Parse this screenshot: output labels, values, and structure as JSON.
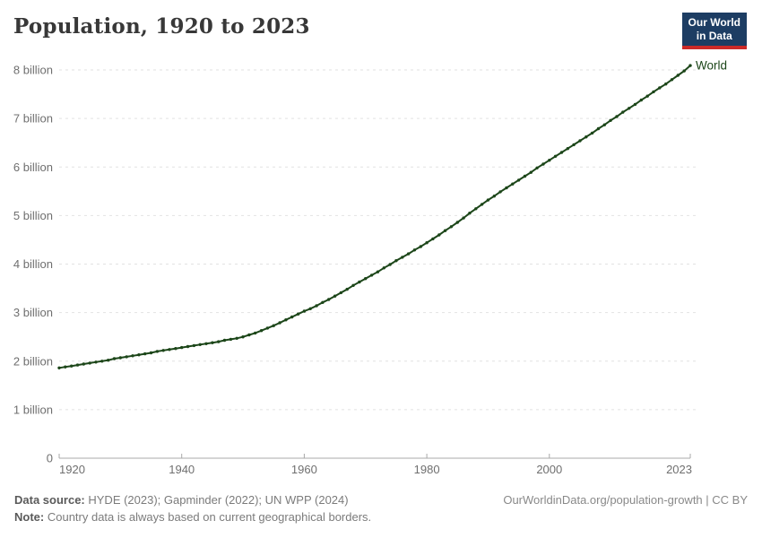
{
  "header": {
    "title": "Population, 1920 to 2023"
  },
  "logo": {
    "line1": "Our World",
    "line2": "in Data",
    "bg_color": "#1d3d63",
    "underline_color": "#cc2a28"
  },
  "footer": {
    "datasource_label": "Data source:",
    "datasource_value": "HYDE (2023); Gapminder (2022); UN WPP (2024)",
    "note_label": "Note:",
    "note_value": "Country data is always based on current geographical borders.",
    "rights": "OurWorldinData.org/population-growth | CC BY"
  },
  "chart_data": {
    "type": "line",
    "title": "Population, 1920 to 2023",
    "xlabel": "",
    "ylabel": "",
    "x_range": [
      1920,
      2023
    ],
    "x_step": 1,
    "ylim": [
      0,
      8.2
    ],
    "grid": "horizontal dashed",
    "legend": "end-of-line entity label",
    "line_color": "#1c4619",
    "gridline_color": "#e2e2e2",
    "axis_color": "#a8a8a8",
    "tick_text_color": "#6f6f6f",
    "yticks": [
      {
        "value": 0,
        "label": "0"
      },
      {
        "value": 1,
        "label": "1 billion"
      },
      {
        "value": 2,
        "label": "2 billion"
      },
      {
        "value": 3,
        "label": "3 billion"
      },
      {
        "value": 4,
        "label": "4 billion"
      },
      {
        "value": 5,
        "label": "5 billion"
      },
      {
        "value": 6,
        "label": "6 billion"
      },
      {
        "value": 7,
        "label": "7 billion"
      },
      {
        "value": 8,
        "label": "8 billion"
      }
    ],
    "xticks": [
      {
        "value": 1920,
        "label": "1920"
      },
      {
        "value": 1940,
        "label": "1940"
      },
      {
        "value": 1960,
        "label": "1960"
      },
      {
        "value": 1980,
        "label": "1980"
      },
      {
        "value": 2000,
        "label": "2000"
      },
      {
        "value": 2023,
        "label": "2023"
      }
    ],
    "series": [
      {
        "name": "World",
        "color": "#1c4619",
        "values": [
          1.86,
          1.88,
          1.9,
          1.92,
          1.94,
          1.96,
          1.98,
          2.0,
          2.02,
          2.05,
          2.07,
          2.09,
          2.11,
          2.13,
          2.15,
          2.17,
          2.2,
          2.22,
          2.24,
          2.26,
          2.28,
          2.3,
          2.32,
          2.34,
          2.36,
          2.38,
          2.4,
          2.43,
          2.45,
          2.47,
          2.5,
          2.54,
          2.58,
          2.63,
          2.68,
          2.73,
          2.79,
          2.85,
          2.91,
          2.97,
          3.03,
          3.08,
          3.14,
          3.21,
          3.27,
          3.34,
          3.41,
          3.48,
          3.56,
          3.63,
          3.7,
          3.77,
          3.84,
          3.92,
          3.99,
          4.07,
          4.14,
          4.21,
          4.29,
          4.36,
          4.44,
          4.52,
          4.6,
          4.69,
          4.77,
          4.86,
          4.95,
          5.05,
          5.14,
          5.23,
          5.32,
          5.4,
          5.49,
          5.57,
          5.65,
          5.73,
          5.81,
          5.89,
          5.98,
          6.06,
          6.14,
          6.22,
          6.3,
          6.38,
          6.46,
          6.54,
          6.62,
          6.7,
          6.79,
          6.87,
          6.96,
          7.04,
          7.13,
          7.21,
          7.29,
          7.38,
          7.46,
          7.55,
          7.63,
          7.71,
          7.8,
          7.89,
          7.98,
          8.09
        ]
      }
    ]
  }
}
